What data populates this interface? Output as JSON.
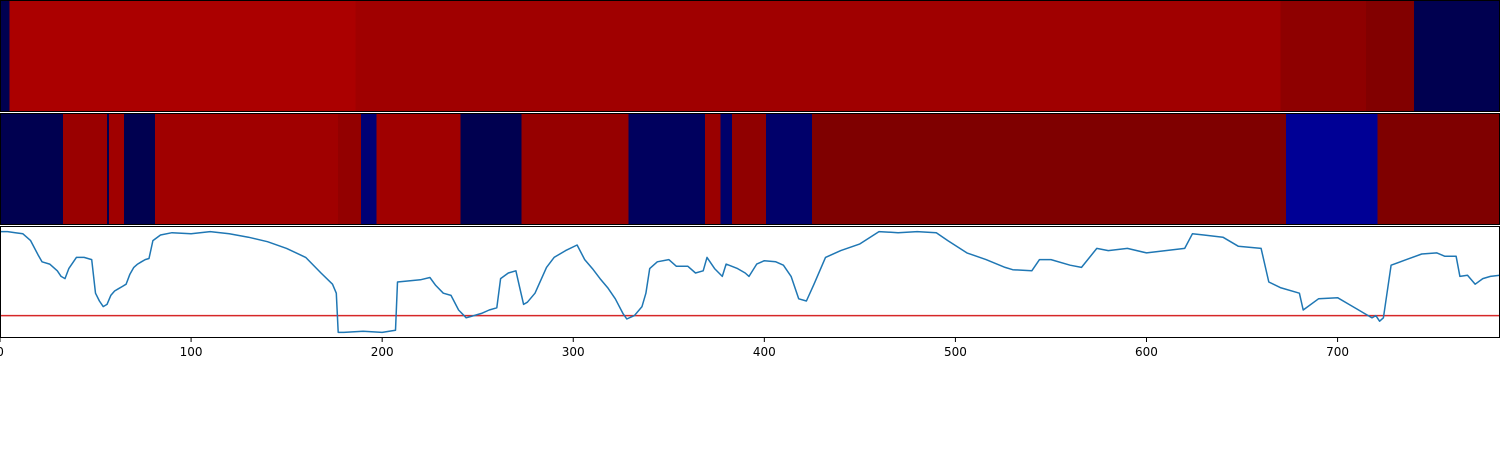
{
  "chart_data": {
    "type": "line",
    "title": "",
    "xlabel": "",
    "ylabel": "",
    "xlim": [
      0,
      785
    ],
    "grid": false,
    "legend": "none",
    "x_ticks": [
      "0",
      "100",
      "200",
      "300",
      "400",
      "500",
      "600",
      "700"
    ],
    "x_tick_values": [
      0,
      100,
      200,
      300,
      400,
      500,
      600,
      700
    ],
    "colors": {
      "line": "#1f77b4",
      "threshold": "#d62728",
      "class_a_dark_navy": "#000050",
      "class_a_navy": "#00006a",
      "class_a_blue": "#000095",
      "class_b_red_bright": "#ab0000",
      "class_b_red": "#a00000",
      "class_b_red_mid": "#8e0000",
      "class_b_red_dark": "#820000",
      "class_b_maroon": "#7f0000"
    },
    "strips": [
      {
        "name": "top-strip",
        "segments": [
          {
            "start": 0,
            "end": 5,
            "color": "#000050"
          },
          {
            "start": 5,
            "end": 186,
            "color": "#ab0000"
          },
          {
            "start": 186,
            "end": 670,
            "color": "#a00000"
          },
          {
            "start": 670,
            "end": 715,
            "color": "#8e0000"
          },
          {
            "start": 715,
            "end": 740,
            "color": "#820000"
          },
          {
            "start": 740,
            "end": 785,
            "color": "#000050"
          }
        ]
      },
      {
        "name": "middle-strip",
        "segments": [
          {
            "start": 0,
            "end": 33,
            "color": "#000050"
          },
          {
            "start": 33,
            "end": 56,
            "color": "#9a0000"
          },
          {
            "start": 56,
            "end": 57,
            "color": "#000050"
          },
          {
            "start": 57,
            "end": 65,
            "color": "#a00000"
          },
          {
            "start": 65,
            "end": 81,
            "color": "#000050"
          },
          {
            "start": 81,
            "end": 177,
            "color": "#a00000"
          },
          {
            "start": 177,
            "end": 189,
            "color": "#930000"
          },
          {
            "start": 189,
            "end": 197,
            "color": "#000075"
          },
          {
            "start": 197,
            "end": 241,
            "color": "#a00000"
          },
          {
            "start": 241,
            "end": 273,
            "color": "#000050"
          },
          {
            "start": 273,
            "end": 329,
            "color": "#960000"
          },
          {
            "start": 329,
            "end": 369,
            "color": "#00005e"
          },
          {
            "start": 369,
            "end": 377,
            "color": "#9a0000"
          },
          {
            "start": 377,
            "end": 383,
            "color": "#00006a"
          },
          {
            "start": 383,
            "end": 401,
            "color": "#900000"
          },
          {
            "start": 401,
            "end": 425,
            "color": "#00006a"
          },
          {
            "start": 425,
            "end": 673,
            "color": "#7f0000"
          },
          {
            "start": 673,
            "end": 721,
            "color": "#000095"
          },
          {
            "start": 721,
            "end": 785,
            "color": "#7f0000"
          }
        ]
      }
    ],
    "threshold": 0.2,
    "ylim": [
      0,
      1.0
    ],
    "series": [
      {
        "values_xy": [
          [
            0,
            0.95
          ],
          [
            4,
            0.95
          ],
          [
            8,
            0.94
          ],
          [
            12,
            0.93
          ],
          [
            16,
            0.87
          ],
          [
            20,
            0.74
          ],
          [
            22,
            0.68
          ],
          [
            26,
            0.66
          ],
          [
            30,
            0.6
          ],
          [
            32,
            0.55
          ],
          [
            34,
            0.53
          ],
          [
            36,
            0.62
          ],
          [
            40,
            0.72
          ],
          [
            44,
            0.72
          ],
          [
            48,
            0.7
          ],
          [
            50,
            0.4
          ],
          [
            52,
            0.33
          ],
          [
            54,
            0.28
          ],
          [
            56,
            0.3
          ],
          [
            58,
            0.38
          ],
          [
            60,
            0.42
          ],
          [
            62,
            0.44
          ],
          [
            64,
            0.46
          ],
          [
            66,
            0.48
          ],
          [
            68,
            0.57
          ],
          [
            70,
            0.63
          ],
          [
            72,
            0.66
          ],
          [
            74,
            0.68
          ],
          [
            76,
            0.7
          ],
          [
            78,
            0.71
          ],
          [
            80,
            0.87
          ],
          [
            84,
            0.92
          ],
          [
            90,
            0.94
          ],
          [
            100,
            0.93
          ],
          [
            110,
            0.95
          ],
          [
            120,
            0.93
          ],
          [
            130,
            0.9
          ],
          [
            140,
            0.86
          ],
          [
            150,
            0.8
          ],
          [
            160,
            0.72
          ],
          [
            168,
            0.58
          ],
          [
            174,
            0.48
          ],
          [
            176,
            0.4
          ],
          [
            177,
            0.05
          ],
          [
            180,
            0.05
          ],
          [
            190,
            0.06
          ],
          [
            200,
            0.05
          ],
          [
            207,
            0.07
          ],
          [
            208,
            0.5
          ],
          [
            214,
            0.51
          ],
          [
            220,
            0.52
          ],
          [
            225,
            0.54
          ],
          [
            228,
            0.47
          ],
          [
            232,
            0.4
          ],
          [
            236,
            0.38
          ],
          [
            240,
            0.25
          ],
          [
            244,
            0.18
          ],
          [
            248,
            0.2
          ],
          [
            252,
            0.22
          ],
          [
            256,
            0.25
          ],
          [
            260,
            0.27
          ],
          [
            262,
            0.53
          ],
          [
            266,
            0.58
          ],
          [
            270,
            0.6
          ],
          [
            272,
            0.45
          ],
          [
            274,
            0.3
          ],
          [
            276,
            0.32
          ],
          [
            280,
            0.4
          ],
          [
            286,
            0.63
          ],
          [
            290,
            0.72
          ],
          [
            296,
            0.78
          ],
          [
            302,
            0.83
          ],
          [
            306,
            0.7
          ],
          [
            310,
            0.62
          ],
          [
            314,
            0.53
          ],
          [
            318,
            0.45
          ],
          [
            322,
            0.35
          ],
          [
            326,
            0.22
          ],
          [
            328,
            0.17
          ],
          [
            332,
            0.2
          ],
          [
            336,
            0.28
          ],
          [
            338,
            0.4
          ],
          [
            340,
            0.62
          ],
          [
            344,
            0.68
          ],
          [
            350,
            0.7
          ],
          [
            354,
            0.64
          ],
          [
            360,
            0.64
          ],
          [
            364,
            0.58
          ],
          [
            368,
            0.6
          ],
          [
            370,
            0.72
          ],
          [
            374,
            0.62
          ],
          [
            378,
            0.55
          ],
          [
            380,
            0.66
          ],
          [
            386,
            0.62
          ],
          [
            390,
            0.58
          ],
          [
            392,
            0.55
          ],
          [
            396,
            0.66
          ],
          [
            400,
            0.69
          ],
          [
            406,
            0.68
          ],
          [
            410,
            0.65
          ],
          [
            414,
            0.55
          ],
          [
            418,
            0.35
          ],
          [
            422,
            0.33
          ],
          [
            426,
            0.48
          ],
          [
            432,
            0.72
          ],
          [
            440,
            0.78
          ],
          [
            450,
            0.84
          ],
          [
            460,
            0.95
          ],
          [
            470,
            0.94
          ],
          [
            480,
            0.95
          ],
          [
            490,
            0.94
          ],
          [
            496,
            0.87
          ],
          [
            506,
            0.76
          ],
          [
            516,
            0.7
          ],
          [
            526,
            0.63
          ],
          [
            530,
            0.61
          ],
          [
            540,
            0.6
          ],
          [
            544,
            0.7
          ],
          [
            550,
            0.7
          ],
          [
            560,
            0.65
          ],
          [
            566,
            0.63
          ],
          [
            574,
            0.8
          ],
          [
            580,
            0.78
          ],
          [
            590,
            0.8
          ],
          [
            600,
            0.76
          ],
          [
            610,
            0.78
          ],
          [
            620,
            0.8
          ],
          [
            624,
            0.93
          ],
          [
            630,
            0.92
          ],
          [
            640,
            0.9
          ],
          [
            648,
            0.82
          ],
          [
            660,
            0.8
          ],
          [
            664,
            0.5
          ],
          [
            670,
            0.45
          ],
          [
            680,
            0.4
          ],
          [
            682,
            0.25
          ],
          [
            690,
            0.35
          ],
          [
            700,
            0.36
          ],
          [
            706,
            0.3
          ],
          [
            710,
            0.26
          ],
          [
            714,
            0.22
          ],
          [
            718,
            0.18
          ],
          [
            720,
            0.2
          ],
          [
            722,
            0.15
          ],
          [
            724,
            0.18
          ],
          [
            728,
            0.65
          ],
          [
            736,
            0.7
          ],
          [
            744,
            0.75
          ],
          [
            752,
            0.76
          ],
          [
            756,
            0.73
          ],
          [
            762,
            0.73
          ],
          [
            764,
            0.55
          ],
          [
            768,
            0.56
          ],
          [
            772,
            0.48
          ],
          [
            776,
            0.53
          ],
          [
            780,
            0.55
          ],
          [
            785,
            0.56
          ]
        ]
      }
    ]
  }
}
